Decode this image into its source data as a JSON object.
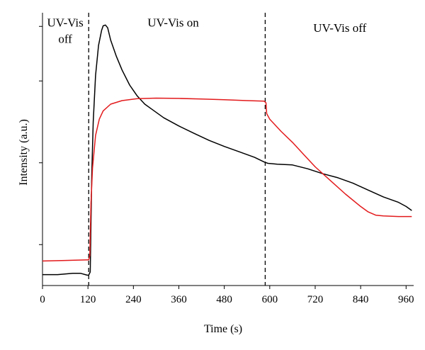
{
  "chart_data": {
    "type": "line",
    "xlabel": "Time (s)",
    "ylabel": "Intensity (a.u.)",
    "xlim": [
      0,
      980
    ],
    "ylim": [
      0,
      100
    ],
    "x_ticks": [
      0,
      120,
      240,
      360,
      480,
      600,
      720,
      840,
      960
    ],
    "y_ticks": [
      15,
      45,
      75,
      95
    ],
    "y_tick_labels_shown": false,
    "grid": false,
    "legend": "none",
    "annotations": [
      {
        "text": "UV-Vis",
        "x": 60,
        "y": 95
      },
      {
        "text": "off",
        "x": 60,
        "y": 89
      },
      {
        "text": "UV-Vis on",
        "x": 345,
        "y": 95
      },
      {
        "text": "UV-Vis off",
        "x": 785,
        "y": 93
      }
    ],
    "vlines": [
      122,
      588
    ],
    "series": [
      {
        "color": "#000000",
        "points": [
          [
            0,
            4
          ],
          [
            40,
            4
          ],
          [
            80,
            4.5
          ],
          [
            100,
            4.5
          ],
          [
            118,
            3.8
          ],
          [
            122,
            3.8
          ],
          [
            126,
            5
          ],
          [
            128,
            22
          ],
          [
            130,
            40
          ],
          [
            134,
            60
          ],
          [
            140,
            77
          ],
          [
            148,
            88
          ],
          [
            156,
            93.5
          ],
          [
            160,
            95.2
          ],
          [
            166,
            95.5
          ],
          [
            172,
            94.5
          ],
          [
            180,
            90
          ],
          [
            195,
            84
          ],
          [
            210,
            79
          ],
          [
            230,
            73.5
          ],
          [
            250,
            69.5
          ],
          [
            270,
            66.5
          ],
          [
            290,
            64.5
          ],
          [
            320,
            61.5
          ],
          [
            360,
            58.5
          ],
          [
            400,
            55.8
          ],
          [
            440,
            53.2
          ],
          [
            480,
            51
          ],
          [
            520,
            49
          ],
          [
            560,
            47
          ],
          [
            585,
            45.3
          ],
          [
            595,
            44.8
          ],
          [
            620,
            44.5
          ],
          [
            660,
            44.2
          ],
          [
            700,
            42.8
          ],
          [
            740,
            41
          ],
          [
            780,
            39.5
          ],
          [
            820,
            37.5
          ],
          [
            860,
            35
          ],
          [
            900,
            32.5
          ],
          [
            940,
            30.5
          ],
          [
            960,
            29
          ],
          [
            975,
            27.5
          ]
        ]
      },
      {
        "color": "#e31a1c",
        "points": [
          [
            0,
            9
          ],
          [
            60,
            9.2
          ],
          [
            120,
            9.4
          ],
          [
            122,
            9.4
          ],
          [
            125,
            11
          ],
          [
            128,
            30
          ],
          [
            132,
            43
          ],
          [
            140,
            55
          ],
          [
            150,
            61
          ],
          [
            160,
            64
          ],
          [
            180,
            66.5
          ],
          [
            210,
            67.8
          ],
          [
            250,
            68.5
          ],
          [
            300,
            68.7
          ],
          [
            360,
            68.6
          ],
          [
            420,
            68.4
          ],
          [
            480,
            68.1
          ],
          [
            540,
            67.8
          ],
          [
            585,
            67.6
          ],
          [
            590,
            67
          ],
          [
            592,
            63
          ],
          [
            600,
            61
          ],
          [
            630,
            56.5
          ],
          [
            660,
            52.5
          ],
          [
            690,
            48
          ],
          [
            720,
            43.5
          ],
          [
            760,
            38.5
          ],
          [
            800,
            33.5
          ],
          [
            840,
            29
          ],
          [
            860,
            27
          ],
          [
            880,
            25.8
          ],
          [
            900,
            25.5
          ],
          [
            940,
            25.3
          ],
          [
            975,
            25.3
          ]
        ]
      }
    ]
  }
}
